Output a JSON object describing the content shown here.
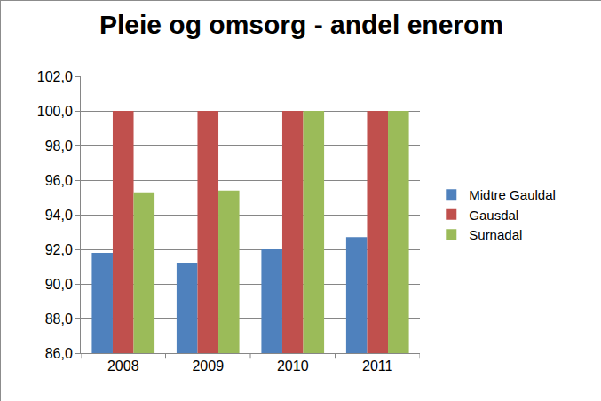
{
  "chart_data": {
    "type": "bar",
    "title": "Pleie og omsorg - andel enerom",
    "categories": [
      "2008",
      "2009",
      "2010",
      "2011"
    ],
    "series": [
      {
        "name": "Midtre Gauldal",
        "color": "#4f81bd",
        "values": [
          91.8,
          91.2,
          92.0,
          92.7
        ]
      },
      {
        "name": "Gausdal",
        "color": "#c0504d",
        "values": [
          100,
          100,
          100,
          100
        ]
      },
      {
        "name": "Surnadal",
        "color": "#9bbb59",
        "values": [
          95.3,
          95.4,
          100,
          100
        ]
      }
    ],
    "ylim": [
      86,
      102
    ],
    "yticks": [
      {
        "value": 86,
        "label": "86,0"
      },
      {
        "value": 88,
        "label": "88,0"
      },
      {
        "value": 90,
        "label": "90,0"
      },
      {
        "value": 92,
        "label": "92,0"
      },
      {
        "value": 94,
        "label": "94,0"
      },
      {
        "value": 96,
        "label": "96,0"
      },
      {
        "value": 98,
        "label": "98,0"
      },
      {
        "value": 100,
        "label": "100,0"
      },
      {
        "value": 102,
        "label": "102,0"
      }
    ],
    "grid": true,
    "legend": "right"
  }
}
